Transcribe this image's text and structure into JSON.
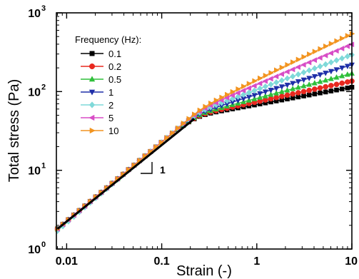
{
  "chart_data": {
    "type": "line",
    "xlabel": "Strain (-)",
    "ylabel": "Total stress (Pa)",
    "xscale": "log",
    "yscale": "log",
    "xlim": [
      0.0078,
      10
    ],
    "ylim": [
      1,
      1000
    ],
    "x_ticks": [
      {
        "value": 0.01,
        "label": "0.01"
      },
      {
        "value": 0.1,
        "label": "0.1"
      },
      {
        "value": 1,
        "label": "1"
      },
      {
        "value": 10,
        "label": "10"
      }
    ],
    "y_ticks": [
      {
        "value": 1,
        "base": "10",
        "exp": "0"
      },
      {
        "value": 10,
        "base": "10",
        "exp": "1"
      },
      {
        "value": 100,
        "base": "10",
        "exp": "2"
      },
      {
        "value": 1000,
        "base": "10",
        "exp": "3"
      }
    ],
    "legend": {
      "title": "Frequency (Hz):",
      "placement": "top-left"
    },
    "slope_annotation": {
      "label": "1"
    },
    "strain_x": [
      0.008,
      0.00913,
      0.01043,
      0.01191,
      0.0136,
      0.01552,
      0.01772,
      0.02023,
      0.0231,
      0.02637,
      0.03011,
      0.03438,
      0.03925,
      0.04481,
      0.05116,
      0.05841,
      0.06669,
      0.07614,
      0.08693,
      0.09925,
      0.1133,
      0.1294,
      0.1477,
      0.1687,
      0.1926,
      0.2199,
      0.251,
      0.2866,
      0.3272,
      0.3736,
      0.4266,
      0.487,
      0.556,
      0.6348,
      0.7248,
      0.8275,
      0.9448,
      1.079,
      1.232,
      1.406,
      1.605,
      1.833,
      2.093,
      2.389,
      2.728,
      3.115,
      3.556,
      4.06,
      4.636,
      5.293,
      6.043,
      6.899,
      7.877,
      8.993,
      10
    ],
    "series": [
      {
        "name": "0.1",
        "color": "#000000",
        "marker": "square",
        "values": [
          1.8,
          2.06,
          2.36,
          2.7,
          3.08,
          3.52,
          4.02,
          4.59,
          5.24,
          5.98,
          6.83,
          7.8,
          8.9,
          10.2,
          11.6,
          13.3,
          15.2,
          17.3,
          19.8,
          22.6,
          25.7,
          29.3,
          33.1,
          37.1,
          41.2,
          45.0,
          48.3,
          51.0,
          53.2,
          55.1,
          56.8,
          58.5,
          60.2,
          62.0,
          63.8,
          65.7,
          67.6,
          69.6,
          71.7,
          73.8,
          76.0,
          78.2,
          80.5,
          82.9,
          85.4,
          87.9,
          90.5,
          93.2,
          96.0,
          98.8,
          101.7,
          104.7,
          107.8,
          111.0,
          113.5
        ]
      },
      {
        "name": "0.2",
        "color": "#e8281f",
        "marker": "circle",
        "values": [
          1.8,
          2.06,
          2.36,
          2.7,
          3.08,
          3.52,
          4.02,
          4.59,
          5.24,
          5.98,
          6.83,
          7.8,
          8.9,
          10.2,
          11.6,
          13.3,
          15.2,
          17.3,
          19.8,
          22.6,
          25.7,
          29.3,
          33.2,
          37.3,
          41.5,
          45.6,
          49.2,
          52.3,
          54.9,
          57.2,
          59.3,
          61.4,
          63.6,
          65.8,
          68.1,
          70.5,
          73.0,
          75.6,
          78.3,
          81.1,
          84.0,
          87.0,
          90.1,
          93.3,
          96.6,
          100.0,
          103.6,
          107.3,
          111.1,
          115.0,
          119.1,
          123.3,
          127.7,
          132.2,
          135.8
        ]
      },
      {
        "name": "0.5",
        "color": "#2fbf3a",
        "marker": "triangle-up",
        "values": [
          1.8,
          2.06,
          2.36,
          2.7,
          3.08,
          3.52,
          4.02,
          4.59,
          5.24,
          5.98,
          6.83,
          7.8,
          8.9,
          10.2,
          11.6,
          13.3,
          15.2,
          17.3,
          19.8,
          22.6,
          25.8,
          29.4,
          33.4,
          37.6,
          42.0,
          46.4,
          50.4,
          53.9,
          57.0,
          59.8,
          62.5,
          65.2,
          68.1,
          71.0,
          74.1,
          77.3,
          80.6,
          84.1,
          87.7,
          91.5,
          95.4,
          99.5,
          103.8,
          108.2,
          112.9,
          117.7,
          122.8,
          128.0,
          133.5,
          139.2,
          145.2,
          151.4,
          157.9,
          164.7,
          170.0
        ]
      },
      {
        "name": "1",
        "color": "#1f2fa8",
        "marker": "triangle-down",
        "values": [
          1.8,
          2.06,
          2.36,
          2.7,
          3.08,
          3.52,
          4.02,
          4.59,
          5.24,
          5.98,
          6.83,
          7.8,
          8.9,
          10.2,
          11.6,
          13.3,
          15.2,
          17.3,
          19.8,
          22.6,
          25.8,
          29.5,
          33.6,
          38.0,
          42.6,
          47.3,
          51.8,
          55.8,
          59.4,
          62.9,
          66.3,
          69.8,
          73.5,
          77.3,
          81.3,
          85.5,
          89.9,
          94.5,
          99.4,
          104.5,
          109.9,
          115.5,
          121.4,
          127.6,
          134.2,
          141.1,
          148.3,
          155.9,
          163.9,
          172.3,
          181.2,
          190.5,
          200.3,
          210.6,
          218.7
        ]
      },
      {
        "name": "2",
        "color": "#7fd9d9",
        "marker": "diamond",
        "values": [
          1.7,
          1.95,
          2.24,
          2.57,
          2.95,
          3.38,
          3.87,
          4.43,
          5.07,
          5.8,
          6.64,
          7.6,
          8.7,
          9.96,
          11.4,
          13.1,
          15.0,
          17.2,
          19.7,
          22.6,
          25.9,
          29.7,
          34.0,
          38.7,
          43.7,
          48.9,
          54.0,
          58.8,
          63.3,
          67.6,
          71.9,
          76.4,
          81.1,
          86.1,
          91.4,
          97.0,
          103.0,
          109.3,
          116.0,
          123.1,
          130.6,
          138.5,
          146.9,
          155.8,
          165.3,
          175.3,
          185.9,
          197.2,
          209.1,
          221.7,
          235.1,
          249.3,
          264.3,
          280.2,
          292.8
        ]
      },
      {
        "name": "5",
        "color": "#d84dc6",
        "marker": "triangle-left",
        "values": [
          1.8,
          2.06,
          2.36,
          2.7,
          3.08,
          3.52,
          4.02,
          4.59,
          5.24,
          5.98,
          6.83,
          7.8,
          8.9,
          10.2,
          11.6,
          13.3,
          15.2,
          17.3,
          19.8,
          22.6,
          25.9,
          29.7,
          34.1,
          39.0,
          44.4,
          50.1,
          55.9,
          61.5,
          66.9,
          72.3,
          77.8,
          83.6,
          89.7,
          96.2,
          103.1,
          110.5,
          118.4,
          126.8,
          135.8,
          145.4,
          155.7,
          166.7,
          178.5,
          191.1,
          204.6,
          219.0,
          234.4,
          250.9,
          268.6,
          287.5,
          307.7,
          329.3,
          352.4,
          377.1,
          397.0
        ]
      },
      {
        "name": "10",
        "color": "#f29420",
        "marker": "triangle-right",
        "values": [
          1.8,
          2.06,
          2.36,
          2.7,
          3.08,
          3.52,
          4.02,
          4.59,
          5.24,
          5.98,
          6.83,
          7.8,
          8.9,
          10.2,
          11.6,
          13.3,
          15.2,
          17.3,
          19.8,
          22.6,
          25.9,
          29.8,
          34.3,
          39.4,
          45.1,
          51.3,
          57.8,
          64.3,
          70.8,
          77.4,
          84.2,
          91.4,
          99.1,
          107.4,
          116.3,
          125.9,
          136.3,
          147.5,
          159.6,
          172.7,
          186.8,
          202.0,
          218.4,
          236.1,
          255.2,
          275.8,
          298.0,
          322.0,
          347.9,
          375.8,
          405.9,
          438.4,
          473.5,
          511.3,
          543.0
        ]
      }
    ],
    "bold_line": {
      "color": "#000000",
      "x": [
        0.008,
        0.2199
      ],
      "values": [
        1.8,
        45.0
      ]
    }
  }
}
